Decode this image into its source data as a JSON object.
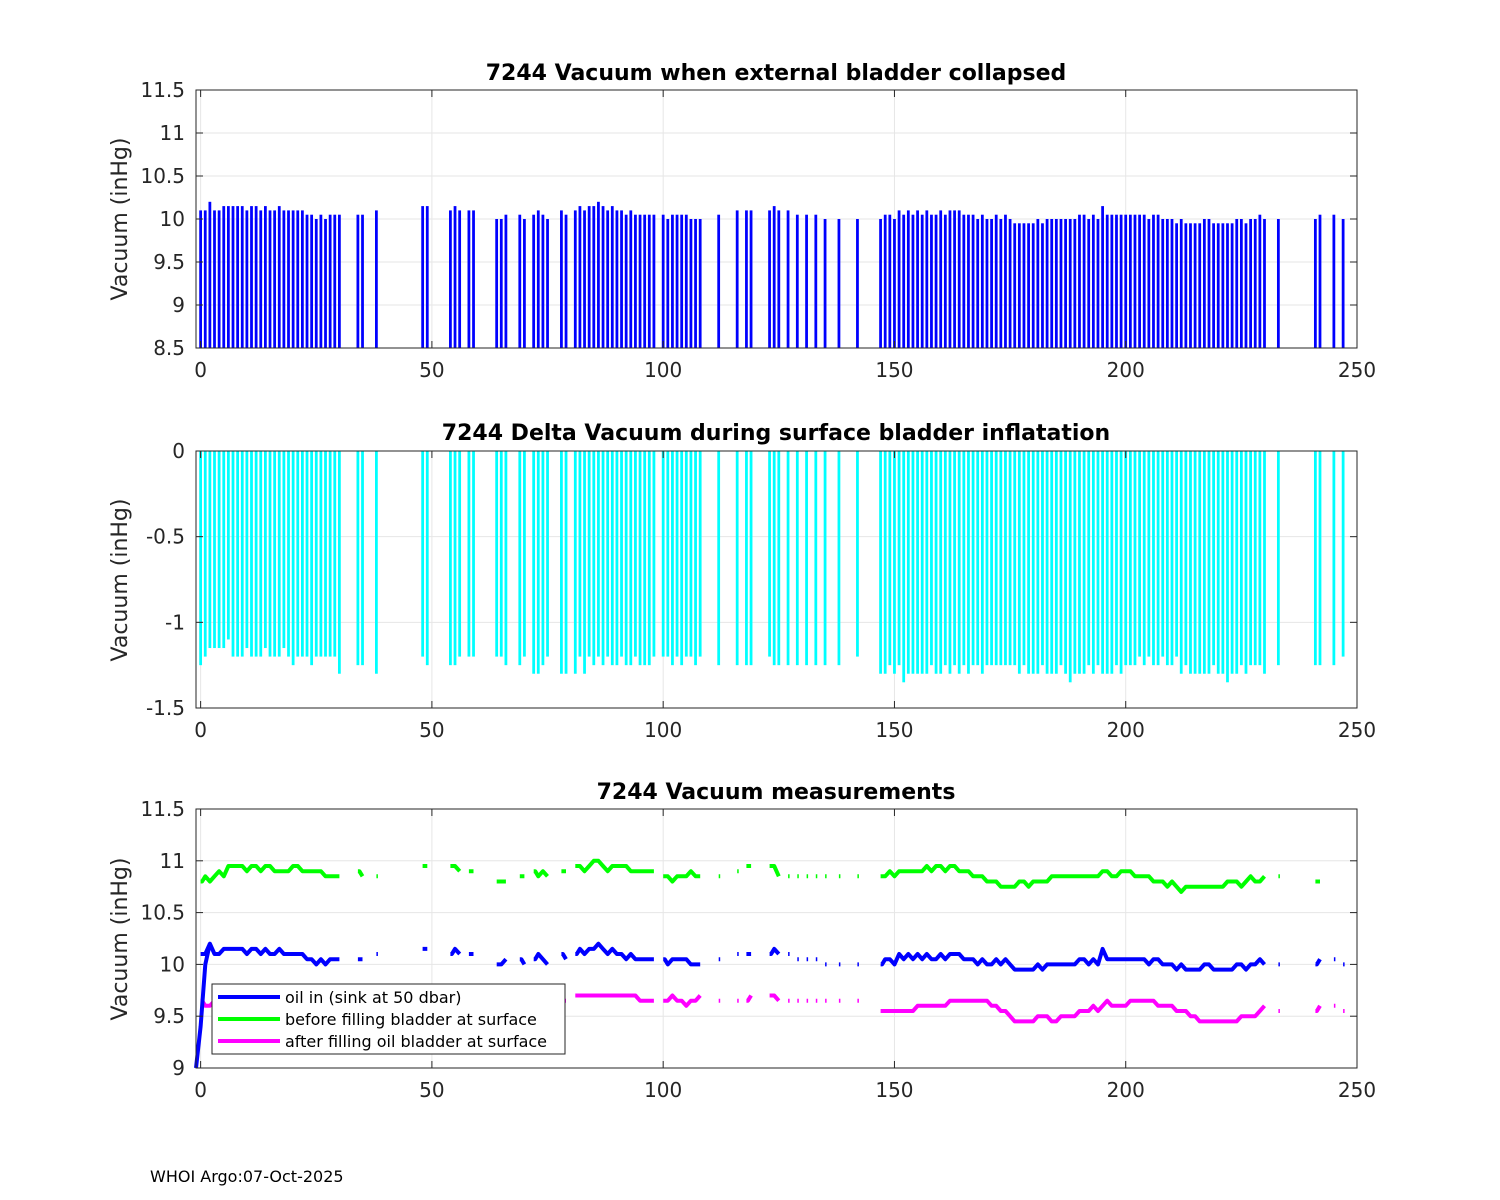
{
  "footer": "WHOI Argo:07-Oct-2025",
  "colors": {
    "blue": "#0000ff",
    "cyan": "#00ffff",
    "green": "#00ff00",
    "magenta": "#ff00ff",
    "grid": "#e6e6e6",
    "axis": "#262626"
  },
  "chart_data": [
    {
      "type": "bar",
      "title": "7244 Vacuum when external bladder collapsed",
      "ylabel": "Vacuum (inHg)",
      "xlim": [
        -1,
        250
      ],
      "ylim": [
        8.5,
        11.5
      ],
      "xticks": [
        "0",
        "50",
        "100",
        "150",
        "200",
        "250"
      ],
      "yticks": [
        "8.5",
        "9",
        "9.5",
        "10",
        "10.5",
        "11",
        "11.5"
      ],
      "color": "#0000ff",
      "grid": true
    },
    {
      "type": "bar",
      "title": "7244 Delta Vacuum during surface bladder inflatation",
      "ylabel": "Vacuum (inHg)",
      "xlim": [
        -1,
        250
      ],
      "ylim": [
        -1.5,
        0
      ],
      "xticks": [
        "0",
        "50",
        "100",
        "150",
        "200",
        "250"
      ],
      "yticks": [
        "-1.5",
        "-1",
        "-0.5",
        "0"
      ],
      "color": "#00ffff",
      "grid": true
    },
    {
      "type": "line",
      "title": "7244 Vacuum measurements",
      "ylabel": "Vacuum (inHg)",
      "xlim": [
        -1,
        250
      ],
      "ylim": [
        9,
        11.5
      ],
      "xticks": [
        "0",
        "50",
        "100",
        "150",
        "200",
        "250"
      ],
      "yticks": [
        "9",
        "9.5",
        "10",
        "10.5",
        "11",
        "11.5"
      ],
      "grid": true,
      "legend": {
        "position": "bottom-left",
        "entries": [
          {
            "label": "oil in (sink at 50 dbar)",
            "color": "#0000ff"
          },
          {
            "label": "before filling bladder at surface",
            "color": "#00ff00"
          },
          {
            "label": "after filling oil bladder at surface",
            "color": "#ff00ff"
          }
        ]
      }
    }
  ],
  "series": {
    "x": [
      0,
      1,
      2,
      3,
      4,
      5,
      6,
      7,
      8,
      9,
      10,
      11,
      12,
      13,
      14,
      15,
      16,
      17,
      18,
      19,
      20,
      21,
      22,
      23,
      24,
      25,
      26,
      27,
      28,
      29,
      30,
      34,
      35,
      38,
      48,
      49,
      54,
      55,
      56,
      58,
      59,
      64,
      65,
      66,
      69,
      70,
      72,
      73,
      74,
      75,
      78,
      79,
      81,
      82,
      83,
      84,
      85,
      86,
      87,
      88,
      89,
      90,
      91,
      92,
      93,
      94,
      95,
      96,
      97,
      98,
      100,
      101,
      102,
      103,
      104,
      105,
      106,
      107,
      108,
      112,
      116,
      118,
      119,
      123,
      124,
      125,
      127,
      129,
      131,
      133,
      135,
      138,
      142,
      147,
      148,
      149,
      150,
      151,
      152,
      153,
      154,
      155,
      156,
      157,
      158,
      159,
      160,
      161,
      162,
      163,
      164,
      165,
      166,
      167,
      168,
      169,
      170,
      171,
      172,
      173,
      174,
      175,
      176,
      177,
      178,
      179,
      180,
      181,
      182,
      183,
      184,
      185,
      186,
      187,
      188,
      189,
      190,
      191,
      192,
      193,
      194,
      195,
      196,
      197,
      198,
      199,
      200,
      201,
      202,
      203,
      204,
      205,
      206,
      207,
      208,
      209,
      210,
      211,
      212,
      213,
      214,
      215,
      216,
      217,
      218,
      219,
      220,
      221,
      222,
      223,
      224,
      225,
      226,
      227,
      228,
      229,
      230,
      233,
      241,
      242,
      245,
      247
    ],
    "collapsed": [
      10.1,
      10.1,
      10.2,
      10.1,
      10.1,
      10.15,
      10.15,
      10.15,
      10.15,
      10.15,
      10.1,
      10.15,
      10.15,
      10.1,
      10.15,
      10.1,
      10.1,
      10.15,
      10.1,
      10.1,
      10.1,
      10.1,
      10.1,
      10.05,
      10.05,
      10.0,
      10.05,
      10.0,
      10.05,
      10.05,
      10.05,
      10.05,
      10.05,
      10.1,
      10.15,
      10.15,
      10.1,
      10.15,
      10.1,
      10.1,
      10.1,
      10.0,
      10.0,
      10.05,
      10.05,
      10.0,
      10.05,
      10.1,
      10.05,
      10.0,
      10.1,
      10.05,
      10.1,
      10.15,
      10.1,
      10.15,
      10.15,
      10.2,
      10.15,
      10.1,
      10.15,
      10.1,
      10.1,
      10.05,
      10.1,
      10.05,
      10.05,
      10.05,
      10.05,
      10.05,
      10.05,
      10.0,
      10.05,
      10.05,
      10.05,
      10.05,
      10.0,
      10.0,
      10.0,
      10.05,
      10.1,
      10.1,
      10.1,
      10.1,
      10.15,
      10.1,
      10.1,
      10.05,
      10.05,
      10.05,
      10.0,
      10.0,
      10.0,
      10.0,
      10.05,
      10.05,
      10.0,
      10.1,
      10.05,
      10.1,
      10.05,
      10.1,
      10.05,
      10.1,
      10.05,
      10.05,
      10.1,
      10.05,
      10.1,
      10.1,
      10.1,
      10.05,
      10.05,
      10.05,
      10.0,
      10.05,
      10.0,
      10.0,
      10.05,
      10.0,
      10.05,
      10.0,
      9.95,
      9.95,
      9.95,
      9.95,
      9.95,
      10.0,
      9.95,
      10.0,
      10.0,
      10.0,
      10.0,
      10.0,
      10.0,
      10.0,
      10.05,
      10.05,
      10.0,
      10.05,
      10.0,
      10.15,
      10.05,
      10.05,
      10.05,
      10.05,
      10.05,
      10.05,
      10.05,
      10.05,
      10.05,
      10.0,
      10.05,
      10.05,
      10.0,
      10.0,
      10.0,
      9.95,
      10.0,
      9.95,
      9.95,
      9.95,
      9.95,
      10.0,
      10.0,
      9.95,
      9.95,
      9.95,
      9.95,
      9.95,
      10.0,
      10.0,
      9.95,
      10.0,
      10.0,
      10.05,
      10.0,
      10.0,
      10.0,
      10.05,
      10.05,
      10.0,
      10.0
    ],
    "delta": [
      -1.25,
      -1.2,
      -1.15,
      -1.15,
      -1.15,
      -1.15,
      -1.1,
      -1.2,
      -1.2,
      -1.2,
      -1.15,
      -1.2,
      -1.2,
      -1.2,
      -1.15,
      -1.2,
      -1.2,
      -1.2,
      -1.15,
      -1.2,
      -1.25,
      -1.2,
      -1.2,
      -1.2,
      -1.25,
      -1.2,
      -1.2,
      -1.2,
      -1.2,
      -1.2,
      -1.3,
      -1.25,
      -1.25,
      -1.3,
      -1.2,
      -1.25,
      -1.25,
      -1.25,
      -1.2,
      -1.2,
      -1.2,
      -1.2,
      -1.2,
      -1.25,
      -1.25,
      -1.2,
      -1.3,
      -1.3,
      -1.25,
      -1.2,
      -1.3,
      -1.3,
      -1.3,
      -1.2,
      -1.3,
      -1.2,
      -1.25,
      -1.2,
      -1.25,
      -1.2,
      -1.25,
      -1.25,
      -1.2,
      -1.25,
      -1.25,
      -1.2,
      -1.25,
      -1.25,
      -1.25,
      -1.2,
      -1.2,
      -1.2,
      -1.25,
      -1.2,
      -1.25,
      -1.2,
      -1.2,
      -1.25,
      -1.2,
      -1.25,
      -1.25,
      -1.25,
      -1.25,
      -1.2,
      -1.25,
      -1.25,
      -1.25,
      -1.25,
      -1.25,
      -1.25,
      -1.25,
      -1.25,
      -1.2,
      -1.3,
      -1.3,
      -1.25,
      -1.3,
      -1.25,
      -1.35,
      -1.3,
      -1.3,
      -1.3,
      -1.3,
      -1.3,
      -1.25,
      -1.3,
      -1.3,
      -1.25,
      -1.3,
      -1.25,
      -1.3,
      -1.25,
      -1.3,
      -1.25,
      -1.25,
      -1.3,
      -1.25,
      -1.25,
      -1.25,
      -1.25,
      -1.25,
      -1.25,
      -1.25,
      -1.3,
      -1.25,
      -1.3,
      -1.3,
      -1.3,
      -1.25,
      -1.3,
      -1.3,
      -1.3,
      -1.25,
      -1.3,
      -1.35,
      -1.3,
      -1.3,
      -1.3,
      -1.25,
      -1.3,
      -1.25,
      -1.3,
      -1.3,
      -1.3,
      -1.25,
      -1.3,
      -1.25,
      -1.25,
      -1.25,
      -1.2,
      -1.25,
      -1.2,
      -1.25,
      -1.25,
      -1.2,
      -1.25,
      -1.25,
      -1.2,
      -1.3,
      -1.25,
      -1.3,
      -1.3,
      -1.3,
      -1.3,
      -1.3,
      -1.25,
      -1.3,
      -1.3,
      -1.35,
      -1.3,
      -1.3,
      -1.25,
      -1.3,
      -1.25,
      -1.25,
      -1.25,
      -1.3,
      -1.25,
      -1.25,
      -1.25,
      -1.25,
      -1.2
    ],
    "before": [
      10.8,
      10.85,
      10.8,
      10.85,
      10.9,
      10.85,
      10.95,
      10.95,
      10.95,
      10.95,
      10.9,
      10.95,
      10.95,
      10.9,
      10.95,
      10.95,
      10.9,
      10.9,
      10.9,
      10.9,
      10.95,
      10.95,
      10.9,
      10.9,
      10.9,
      10.9,
      10.9,
      10.85,
      10.85,
      10.85,
      10.85,
      10.9,
      10.85,
      10.85,
      10.95,
      10.95,
      10.95,
      10.95,
      10.9,
      10.9,
      10.9,
      10.8,
      10.8,
      10.8,
      10.85,
      10.85,
      10.9,
      10.85,
      10.9,
      10.85,
      10.9,
      10.9,
      10.95,
      10.95,
      10.9,
      10.95,
      11.0,
      11.0,
      10.95,
      10.9,
      10.95,
      10.95,
      10.95,
      10.95,
      10.9,
      10.9,
      10.9,
      10.9,
      10.9,
      10.9,
      10.85,
      10.85,
      10.8,
      10.85,
      10.85,
      10.85,
      10.9,
      10.85,
      10.85,
      10.85,
      10.9,
      10.95,
      10.95,
      10.95,
      10.95,
      10.85,
      10.85,
      10.85,
      10.85,
      10.85,
      10.85,
      10.85,
      10.85,
      10.85,
      10.85,
      10.9,
      10.85,
      10.9,
      10.9,
      10.9,
      10.9,
      10.9,
      10.9,
      10.95,
      10.9,
      10.95,
      10.95,
      10.9,
      10.95,
      10.95,
      10.9,
      10.9,
      10.9,
      10.85,
      10.85,
      10.85,
      10.8,
      10.8,
      10.8,
      10.75,
      10.75,
      10.75,
      10.75,
      10.8,
      10.8,
      10.75,
      10.8,
      10.8,
      10.8,
      10.8,
      10.85,
      10.85,
      10.85,
      10.85,
      10.85,
      10.85,
      10.85,
      10.85,
      10.85,
      10.85,
      10.85,
      10.9,
      10.9,
      10.85,
      10.85,
      10.9,
      10.9,
      10.9,
      10.85,
      10.85,
      10.85,
      10.85,
      10.8,
      10.8,
      10.8,
      10.75,
      10.8,
      10.75,
      10.7,
      10.75,
      10.75,
      10.75,
      10.75,
      10.75,
      10.75,
      10.75,
      10.75,
      10.75,
      10.8,
      10.8,
      10.8,
      10.75,
      10.8,
      10.85,
      10.8,
      10.8,
      10.85,
      10.85,
      10.8,
      10.8
    ],
    "after": [
      9.65,
      9.6,
      9.6,
      9.65,
      9.65,
      9.65,
      9.65,
      9.6,
      9.65,
      9.6,
      9.6,
      9.65,
      9.65,
      9.6,
      9.65,
      9.6,
      9.6,
      9.65,
      9.6,
      9.6,
      9.65,
      9.65,
      9.6,
      9.6,
      9.65,
      9.65,
      9.6,
      9.6,
      9.65,
      9.65,
      9.65,
      9.6,
      9.6,
      9.65,
      9.6,
      9.6,
      9.65,
      9.65,
      9.6,
      9.6,
      9.6,
      9.6,
      9.65,
      9.65,
      9.65,
      9.65,
      9.65,
      9.65,
      9.65,
      9.65,
      9.65,
      9.65,
      9.7,
      9.7,
      9.7,
      9.7,
      9.7,
      9.7,
      9.7,
      9.7,
      9.7,
      9.7,
      9.7,
      9.7,
      9.7,
      9.7,
      9.65,
      9.65,
      9.65,
      9.65,
      9.65,
      9.65,
      9.7,
      9.65,
      9.65,
      9.6,
      9.65,
      9.65,
      9.7,
      9.65,
      9.65,
      9.65,
      9.7,
      9.7,
      9.7,
      9.65,
      9.65,
      9.65,
      9.65,
      9.65,
      9.65,
      9.65,
      9.65,
      9.55,
      9.55,
      9.55,
      9.55,
      9.55,
      9.55,
      9.55,
      9.55,
      9.6,
      9.6,
      9.6,
      9.6,
      9.6,
      9.6,
      9.6,
      9.65,
      9.65,
      9.65,
      9.65,
      9.65,
      9.65,
      9.65,
      9.65,
      9.65,
      9.6,
      9.6,
      9.55,
      9.55,
      9.5,
      9.45,
      9.45,
      9.45,
      9.45,
      9.45,
      9.5,
      9.5,
      9.5,
      9.45,
      9.45,
      9.5,
      9.5,
      9.5,
      9.5,
      9.55,
      9.55,
      9.55,
      9.6,
      9.55,
      9.6,
      9.65,
      9.6,
      9.6,
      9.6,
      9.6,
      9.65,
      9.65,
      9.65,
      9.65,
      9.65,
      9.65,
      9.6,
      9.6,
      9.6,
      9.6,
      9.55,
      9.55,
      9.55,
      9.5,
      9.5,
      9.45,
      9.45,
      9.45,
      9.45,
      9.45,
      9.45,
      9.45,
      9.45,
      9.45,
      9.5,
      9.5,
      9.5,
      9.5,
      9.55,
      9.6,
      9.55,
      9.55,
      9.6,
      9.6,
      9.55
    ]
  }
}
